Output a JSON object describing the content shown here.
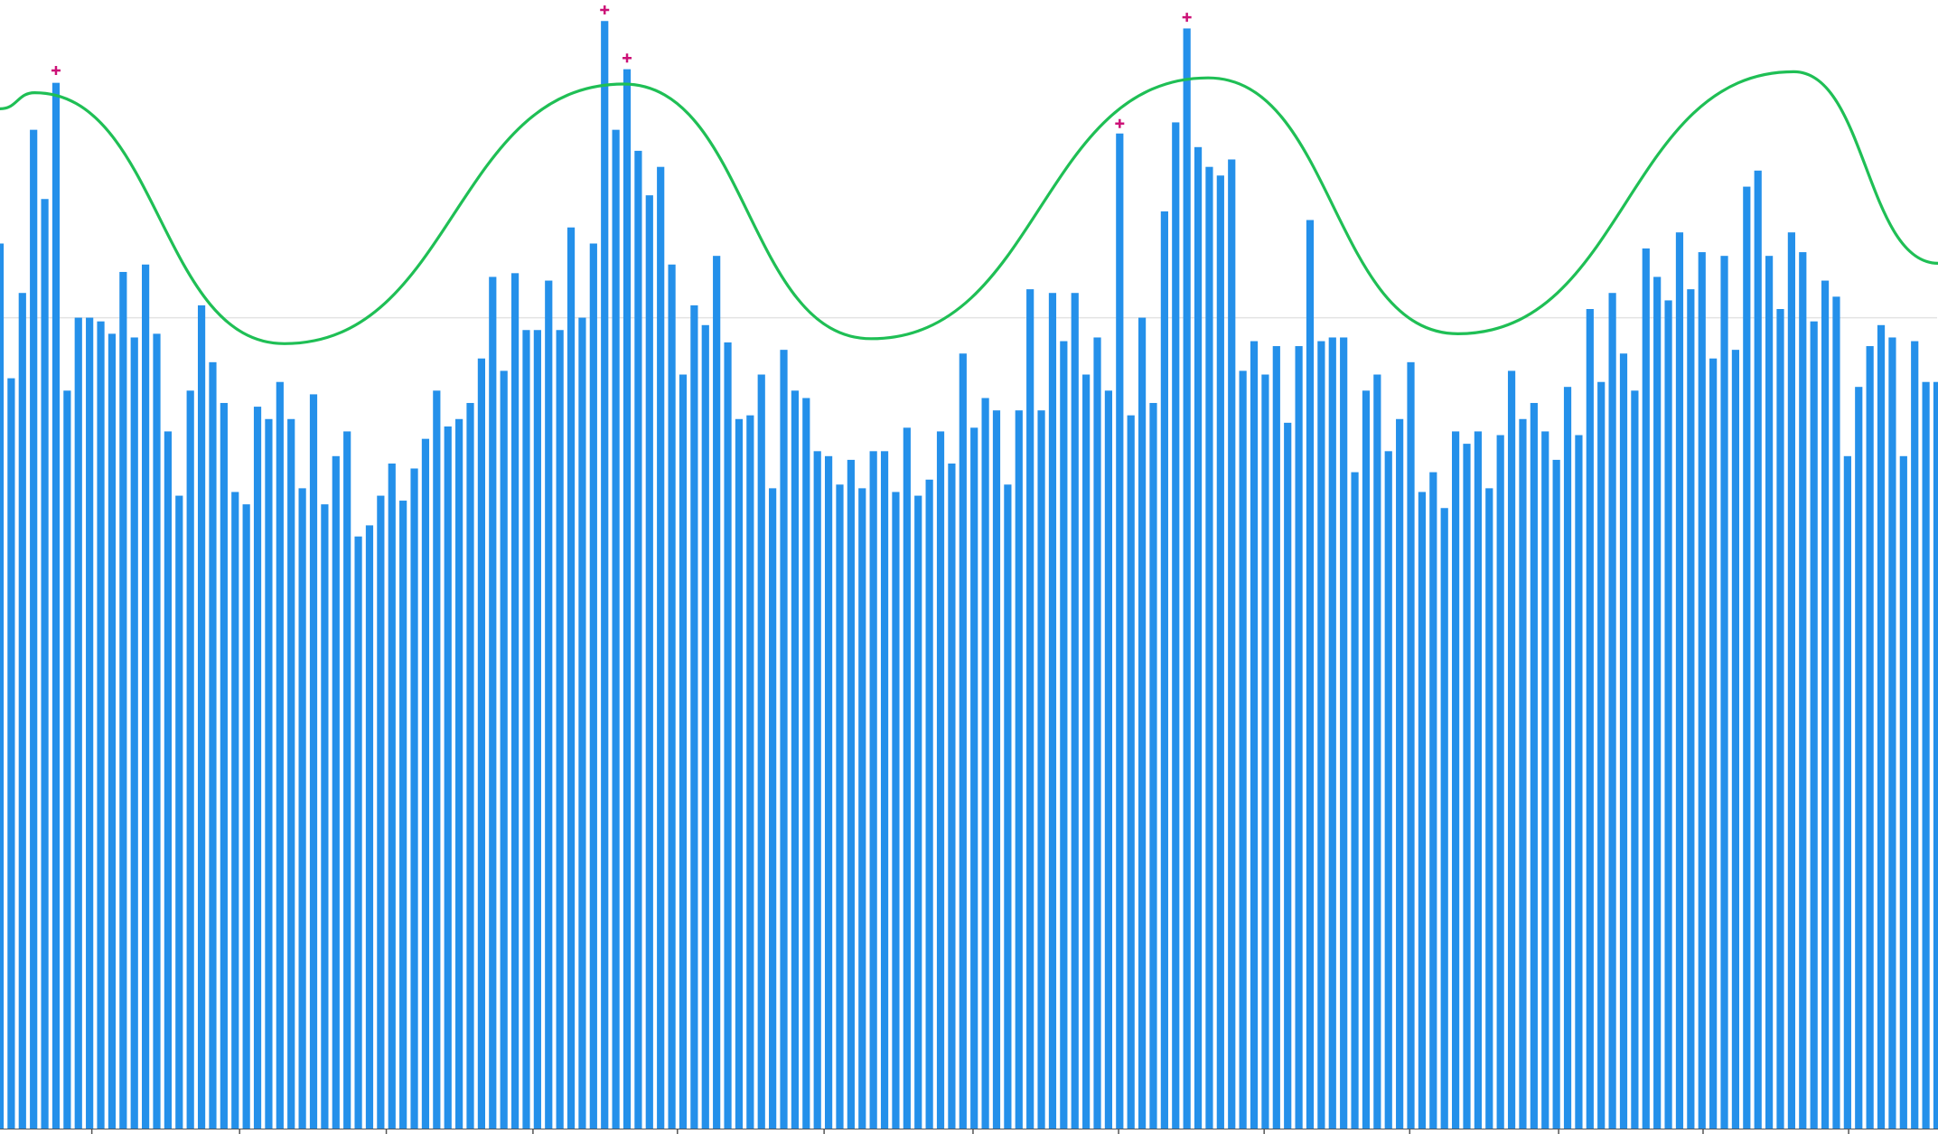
{
  "chart_data": {
    "type": "bar",
    "color": "#2490ea",
    "values": [
      716,
      607,
      676,
      808,
      752,
      846,
      597,
      656,
      656,
      653,
      643,
      693,
      640,
      699,
      643,
      564,
      512,
      597,
      666,
      620,
      587,
      515,
      505,
      584,
      574,
      604,
      574,
      518,
      594,
      505,
      544,
      564,
      479,
      488,
      512,
      538,
      508,
      534,
      558,
      597,
      568,
      574,
      587,
      623,
      689,
      613,
      692,
      646,
      646,
      686,
      646,
      729,
      656,
      716,
      896,
      808,
      857,
      791,
      755,
      778,
      699,
      610,
      666,
      650,
      706,
      636,
      574,
      577,
      610,
      518,
      630,
      597,
      591,
      548,
      544,
      521,
      541,
      518,
      548,
      548,
      515,
      567,
      512,
      525,
      564,
      538,
      627,
      567,
      591,
      581,
      521,
      581,
      679,
      581,
      676,
      637,
      676,
      610,
      640,
      597,
      805,
      577,
      656,
      587,
      742,
      814,
      890,
      794,
      778,
      771,
      784,
      613,
      637,
      610,
      633,
      571,
      633,
      735,
      637,
      640,
      640,
      531,
      597,
      610,
      548,
      574,
      620,
      515,
      531,
      502,
      564,
      554,
      564,
      518,
      561,
      613,
      574,
      587,
      564,
      541,
      600,
      561,
      663,
      604,
      676,
      627,
      597,
      712,
      689,
      670,
      725,
      679,
      709,
      623,
      706,
      630,
      762,
      775,
      706,
      663,
      725,
      709,
      653,
      686,
      673,
      544,
      600,
      633,
      650,
      640,
      544,
      637,
      604,
      604
    ],
    "ylim": [
      0,
      913
    ],
    "xlim": [
      0,
      173
    ],
    "yticks": [
      656
    ],
    "xticks": [
      8.2,
      21.4,
      34.5,
      47.6,
      60.5,
      73.6,
      86.9,
      99.9,
      112.9,
      125.9,
      139.2,
      152.1,
      165.1
    ],
    "grid": true,
    "line": {
      "color": "#1fbf55",
      "x": [
        0,
        3.1,
        25.4,
        55.7,
        77.8,
        107.9,
        130.2,
        160.2,
        173.1
      ],
      "values": [
        825,
        838,
        635,
        845,
        639,
        850,
        643,
        855,
        700
      ]
    },
    "outliers": {
      "color": "#cc1177",
      "x": [
        5,
        54,
        56,
        100,
        106
      ],
      "values": [
        856,
        905,
        866,
        813,
        899
      ]
    }
  }
}
